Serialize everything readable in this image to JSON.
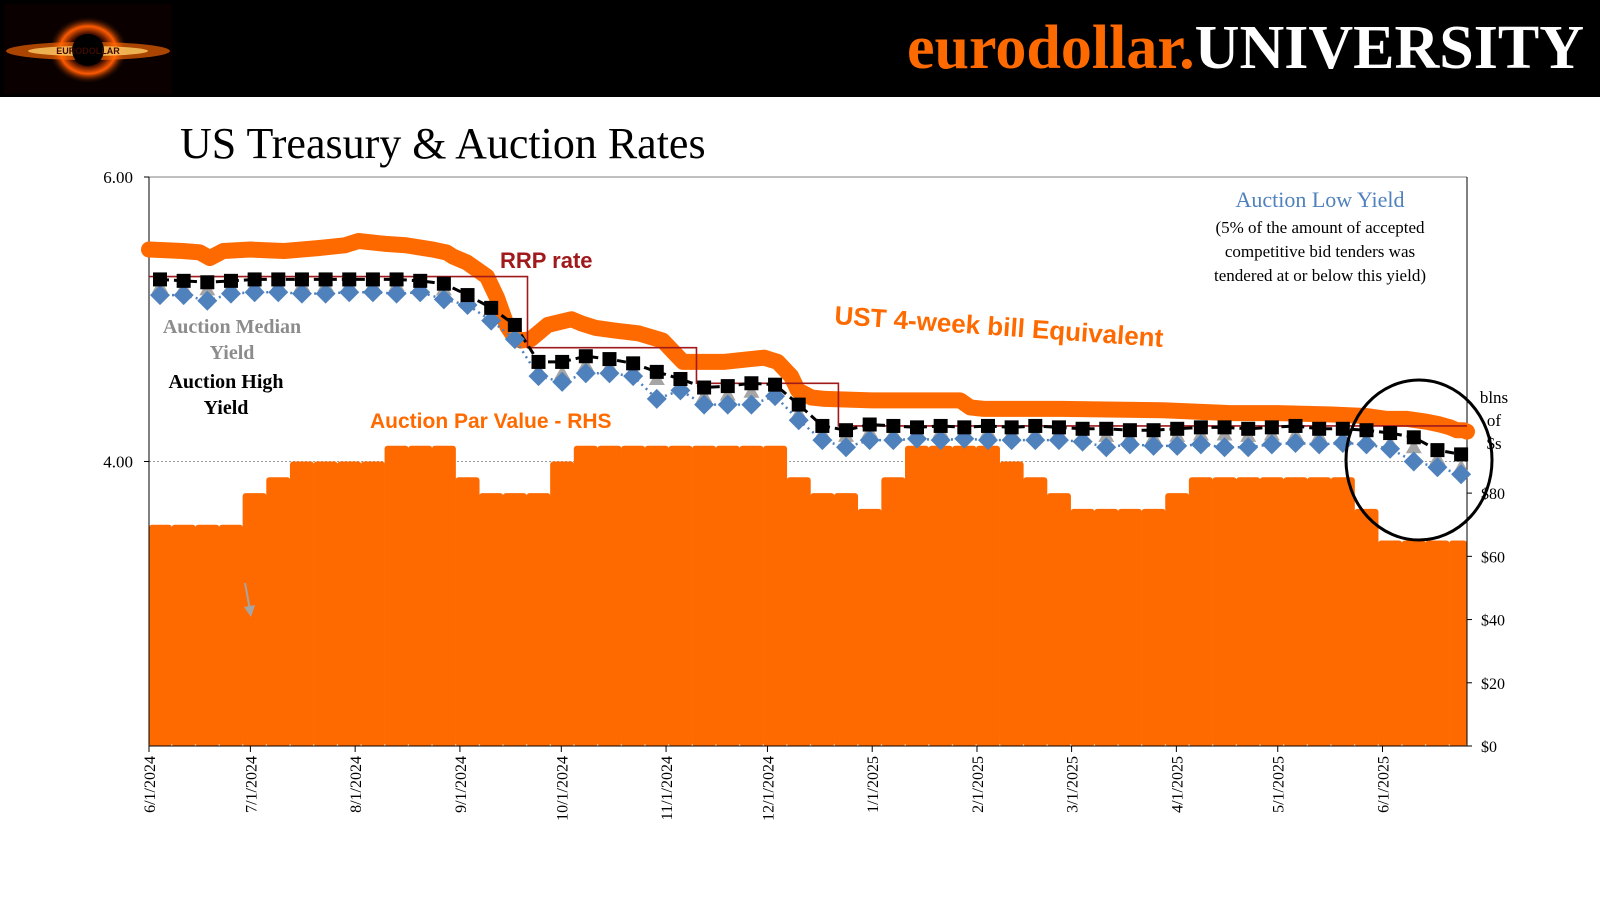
{
  "header": {
    "brand_part1": "eurodollar.",
    "brand_part2": "UNIVERSITY",
    "logo_text": "EURODOLLAR"
  },
  "colors": {
    "banner": "#000000",
    "brand_orange": "#ff6a00",
    "bar_orange": "#ff6a00",
    "bill_orange": "#ff6a00",
    "rrp_red": "#a0191b",
    "low_blue": "#4f81bd",
    "median_gray": "#a5a5a5",
    "high_black": "#000000"
  },
  "chart_data": {
    "type": "bar",
    "title": "US Treasury & Auction Rates",
    "left_axis": {
      "range": [
        2.0,
        6.0
      ],
      "ticks": [
        "4.00",
        "6.00"
      ]
    },
    "right_axis": {
      "unit_label": [
        "blns",
        "of",
        "$s"
      ],
      "range": [
        0,
        180
      ],
      "ticks": [
        "$0",
        "$20",
        "$40",
        "$60",
        "$80"
      ]
    },
    "x_axis": {
      "range_days": [
        0,
        390
      ],
      "tick_labels": [
        "6/1/2024",
        "7/1/2024",
        "8/1/2024",
        "9/1/2024",
        "10/1/2024",
        "11/1/2024",
        "12/1/2024",
        "1/1/2025",
        "2/1/2025",
        "3/1/2025",
        "4/1/2025",
        "5/1/2025",
        "6/1/2025"
      ],
      "tick_days": [
        0,
        30,
        61,
        92,
        122,
        153,
        183,
        214,
        245,
        273,
        304,
        334,
        365
      ]
    },
    "annotations": {
      "rrp": "RRP rate",
      "bill": "UST 4-week bill Equivalent",
      "par": "Auction Par Value - RHS",
      "median": "Auction Median Yield",
      "median_line1": "Auction Median",
      "median_line2": "Yield",
      "high": "Auction High Yield",
      "high_line1": "Auction High",
      "high_line2": "Yield",
      "low_title": "Auction Low Yield",
      "low_note1": "(5% of the amount of accepted",
      "low_note2": "competitive bid tenders was",
      "low_note3": "tendered at or below this yield)"
    },
    "series": [
      {
        "name": "Auction Par Value - RHS",
        "axis": "right",
        "x": [
          0,
          7,
          14,
          21,
          28,
          35,
          42,
          49,
          56,
          63,
          70,
          77,
          84,
          91,
          98,
          105,
          112,
          119,
          126,
          133,
          140,
          147,
          154,
          161,
          168,
          175,
          182,
          189,
          196,
          203,
          210,
          217,
          224,
          231,
          238,
          245,
          252,
          259,
          266,
          273,
          280,
          287,
          294,
          301,
          308,
          315,
          322,
          329,
          336,
          343,
          350,
          357,
          364,
          371,
          378,
          385
        ],
        "values": [
          70,
          70,
          70,
          70,
          80,
          85,
          90,
          90,
          90,
          90,
          95,
          95,
          95,
          85,
          80,
          80,
          80,
          90,
          95,
          95,
          95,
          95,
          95,
          95,
          95,
          95,
          95,
          85,
          80,
          80,
          75,
          85,
          95,
          95,
          95,
          95,
          90,
          85,
          80,
          75,
          75,
          75,
          75,
          80,
          85,
          85,
          85,
          85,
          85,
          85,
          85,
          75,
          65,
          65,
          65,
          65
        ]
      },
      {
        "name": "UST 4-week bill Equivalent",
        "axis": "left",
        "x": [
          0,
          10,
          15,
          18,
          22,
          30,
          40,
          50,
          58,
          62,
          66,
          70,
          76,
          84,
          88,
          90,
          94,
          100,
          103,
          106,
          108,
          110,
          113,
          116,
          118,
          125,
          128,
          132,
          138,
          145,
          152,
          156,
          158,
          162,
          170,
          178,
          182,
          186,
          190,
          192,
          196,
          200,
          214,
          225,
          240,
          243,
          247,
          250,
          270,
          300,
          320,
          334,
          350,
          360,
          366,
          372,
          378,
          382,
          385,
          387,
          389,
          390
        ],
        "values": [
          5.49,
          5.48,
          5.47,
          5.43,
          5.48,
          5.49,
          5.48,
          5.5,
          5.52,
          5.55,
          5.54,
          5.53,
          5.52,
          5.49,
          5.47,
          5.44,
          5.4,
          5.3,
          5.15,
          4.95,
          4.88,
          4.85,
          4.86,
          4.92,
          4.96,
          5.0,
          4.97,
          4.94,
          4.92,
          4.9,
          4.85,
          4.75,
          4.7,
          4.7,
          4.7,
          4.72,
          4.73,
          4.7,
          4.6,
          4.5,
          4.45,
          4.44,
          4.43,
          4.43,
          4.43,
          4.38,
          4.37,
          4.37,
          4.37,
          4.36,
          4.34,
          4.34,
          4.33,
          4.32,
          4.3,
          4.3,
          4.28,
          4.26,
          4.24,
          4.22,
          4.22,
          4.21
        ]
      },
      {
        "name": "RRP rate",
        "axis": "left",
        "x": [
          0,
          112,
          112,
          162,
          162,
          204,
          204,
          390
        ],
        "values": [
          5.3,
          5.3,
          4.8,
          4.8,
          4.55,
          4.55,
          4.25,
          4.25
        ]
      },
      {
        "name": "Auction High Yield",
        "axis": "left",
        "x": [
          0,
          7,
          14,
          21,
          28,
          35,
          42,
          49,
          56,
          63,
          70,
          77,
          84,
          91,
          98,
          105,
          112,
          119,
          126,
          133,
          140,
          147,
          154,
          161,
          168,
          175,
          182,
          189,
          196,
          203,
          210,
          217,
          224,
          231,
          238,
          245,
          252,
          259,
          266,
          273,
          280,
          287,
          294,
          301,
          308,
          315,
          322,
          329,
          336,
          343,
          350,
          357,
          364,
          371,
          378,
          385
        ],
        "values": [
          5.28,
          5.27,
          5.26,
          5.27,
          5.28,
          5.28,
          5.28,
          5.28,
          5.28,
          5.28,
          5.28,
          5.27,
          5.25,
          5.17,
          5.08,
          4.96,
          4.7,
          4.7,
          4.74,
          4.72,
          4.69,
          4.63,
          4.58,
          4.52,
          4.53,
          4.55,
          4.54,
          4.4,
          4.25,
          4.22,
          4.26,
          4.25,
          4.24,
          4.25,
          4.24,
          4.25,
          4.24,
          4.25,
          4.24,
          4.23,
          4.23,
          4.22,
          4.22,
          4.23,
          4.24,
          4.24,
          4.23,
          4.24,
          4.25,
          4.23,
          4.23,
          4.22,
          4.2,
          4.17,
          4.08,
          4.05
        ]
      },
      {
        "name": "Auction Median Yield",
        "axis": "left",
        "x": [
          0,
          7,
          14,
          21,
          28,
          35,
          42,
          49,
          56,
          63,
          70,
          77,
          84,
          91,
          98,
          105,
          112,
          119,
          126,
          133,
          140,
          147,
          154,
          161,
          168,
          175,
          182,
          189,
          196,
          203,
          210,
          217,
          224,
          231,
          238,
          245,
          252,
          259,
          266,
          273,
          280,
          287,
          294,
          301,
          308,
          315,
          322,
          329,
          336,
          343,
          350,
          357,
          364,
          371,
          378,
          385
        ],
        "values": [
          5.23,
          5.22,
          5.21,
          5.23,
          5.24,
          5.24,
          5.24,
          5.24,
          5.24,
          5.24,
          5.24,
          5.23,
          5.21,
          5.12,
          5.02,
          4.9,
          4.64,
          4.62,
          4.68,
          4.67,
          4.64,
          4.58,
          4.52,
          4.46,
          4.47,
          4.49,
          4.48,
          4.34,
          4.2,
          4.18,
          4.21,
          4.2,
          4.2,
          4.21,
          4.2,
          4.21,
          4.2,
          4.2,
          4.2,
          4.18,
          4.18,
          4.17,
          4.17,
          4.18,
          4.19,
          4.19,
          4.18,
          4.19,
          4.19,
          4.18,
          4.17,
          4.16,
          4.13,
          4.1,
          4.02,
          3.96
        ]
      },
      {
        "name": "Auction Low Yield",
        "axis": "left",
        "x": [
          0,
          7,
          14,
          21,
          28,
          35,
          42,
          49,
          56,
          63,
          70,
          77,
          84,
          91,
          98,
          105,
          112,
          119,
          126,
          133,
          140,
          147,
          154,
          161,
          168,
          175,
          182,
          189,
          196,
          203,
          210,
          217,
          224,
          231,
          238,
          245,
          252,
          259,
          266,
          273,
          280,
          287,
          294,
          301,
          308,
          315,
          322,
          329,
          336,
          343,
          350,
          357,
          364,
          371,
          378,
          385
        ],
        "values": [
          5.17,
          5.17,
          5.13,
          5.18,
          5.19,
          5.19,
          5.18,
          5.18,
          5.19,
          5.19,
          5.18,
          5.19,
          5.14,
          5.1,
          4.99,
          4.86,
          4.6,
          4.56,
          4.62,
          4.62,
          4.6,
          4.44,
          4.5,
          4.4,
          4.4,
          4.4,
          4.46,
          4.29,
          4.15,
          4.1,
          4.15,
          4.15,
          4.16,
          4.15,
          4.16,
          4.15,
          4.15,
          4.15,
          4.15,
          4.14,
          4.1,
          4.12,
          4.11,
          4.11,
          4.12,
          4.1,
          4.1,
          4.12,
          4.13,
          4.12,
          4.13,
          4.12,
          4.09,
          4.0,
          3.96,
          3.91
        ]
      }
    ]
  }
}
